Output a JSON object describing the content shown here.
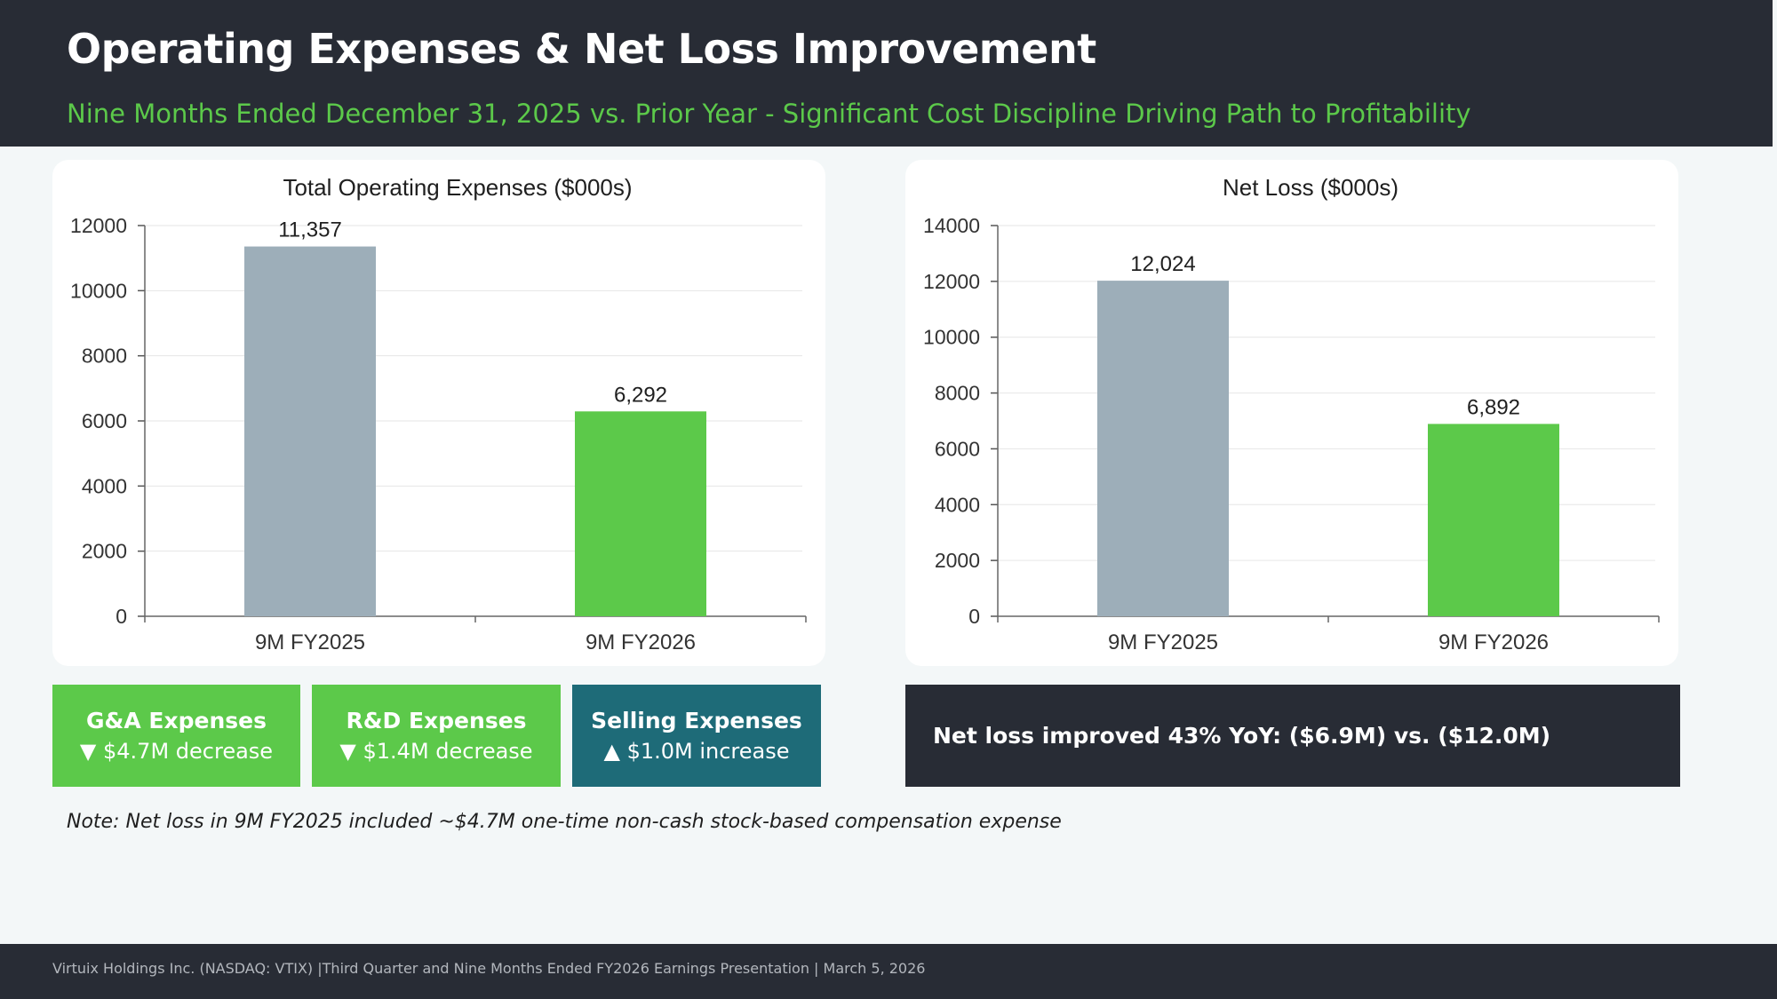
{
  "header": {
    "title": "Operating Expenses & Net Loss Improvement",
    "subtitle": "Nine Months Ended December 31, 2025 vs. Prior Year - Significant Cost Discipline Driving Path to Profitability"
  },
  "chart_data": [
    {
      "type": "bar",
      "title": "Total Operating Expenses ($000s)",
      "categories": [
        "9M FY2025",
        "9M FY2026"
      ],
      "values": [
        11357,
        6292
      ],
      "value_labels": [
        "11,357",
        "6,292"
      ],
      "colors": [
        "#9daeb9",
        "#5cc94a"
      ],
      "yticks": [
        "0",
        "2000",
        "4000",
        "6000",
        "8000",
        "10000",
        "12000"
      ],
      "ylim": [
        0,
        12000
      ],
      "grid": true,
      "xlabel": "",
      "ylabel": ""
    },
    {
      "type": "bar",
      "title": "Net Loss ($000s)",
      "categories": [
        "9M FY2025",
        "9M FY2026"
      ],
      "values": [
        12024,
        6892
      ],
      "value_labels": [
        "12,024",
        "6,892"
      ],
      "colors": [
        "#9daeb9",
        "#5cc94a"
      ],
      "yticks": [
        "0",
        "2000",
        "4000",
        "6000",
        "8000",
        "10000",
        "12000",
        "14000"
      ],
      "ylim": [
        0,
        14000
      ],
      "grid": true,
      "xlabel": "",
      "ylabel": ""
    }
  ],
  "stats": [
    {
      "label": "G&A Expenses",
      "change": "▼ $4.7M decrease"
    },
    {
      "label": "R&D Expenses",
      "change": "▼ $1.4M decrease"
    },
    {
      "label": "Selling Expenses",
      "change": "▲ $1.0M increase"
    }
  ],
  "net_loss_callout": "Net loss improved 43% YoY: ($6.9M) vs. ($12.0M)",
  "note": "Note: Net loss in 9M FY2025 included ~$4.7M one-time non-cash stock-based compensation expense",
  "footer": "Virtuix Holdings Inc. (NASDAQ: VTIX) |Third Quarter and  Nine Months Ended FY2026 Earnings Presentation | March 5, 2026"
}
